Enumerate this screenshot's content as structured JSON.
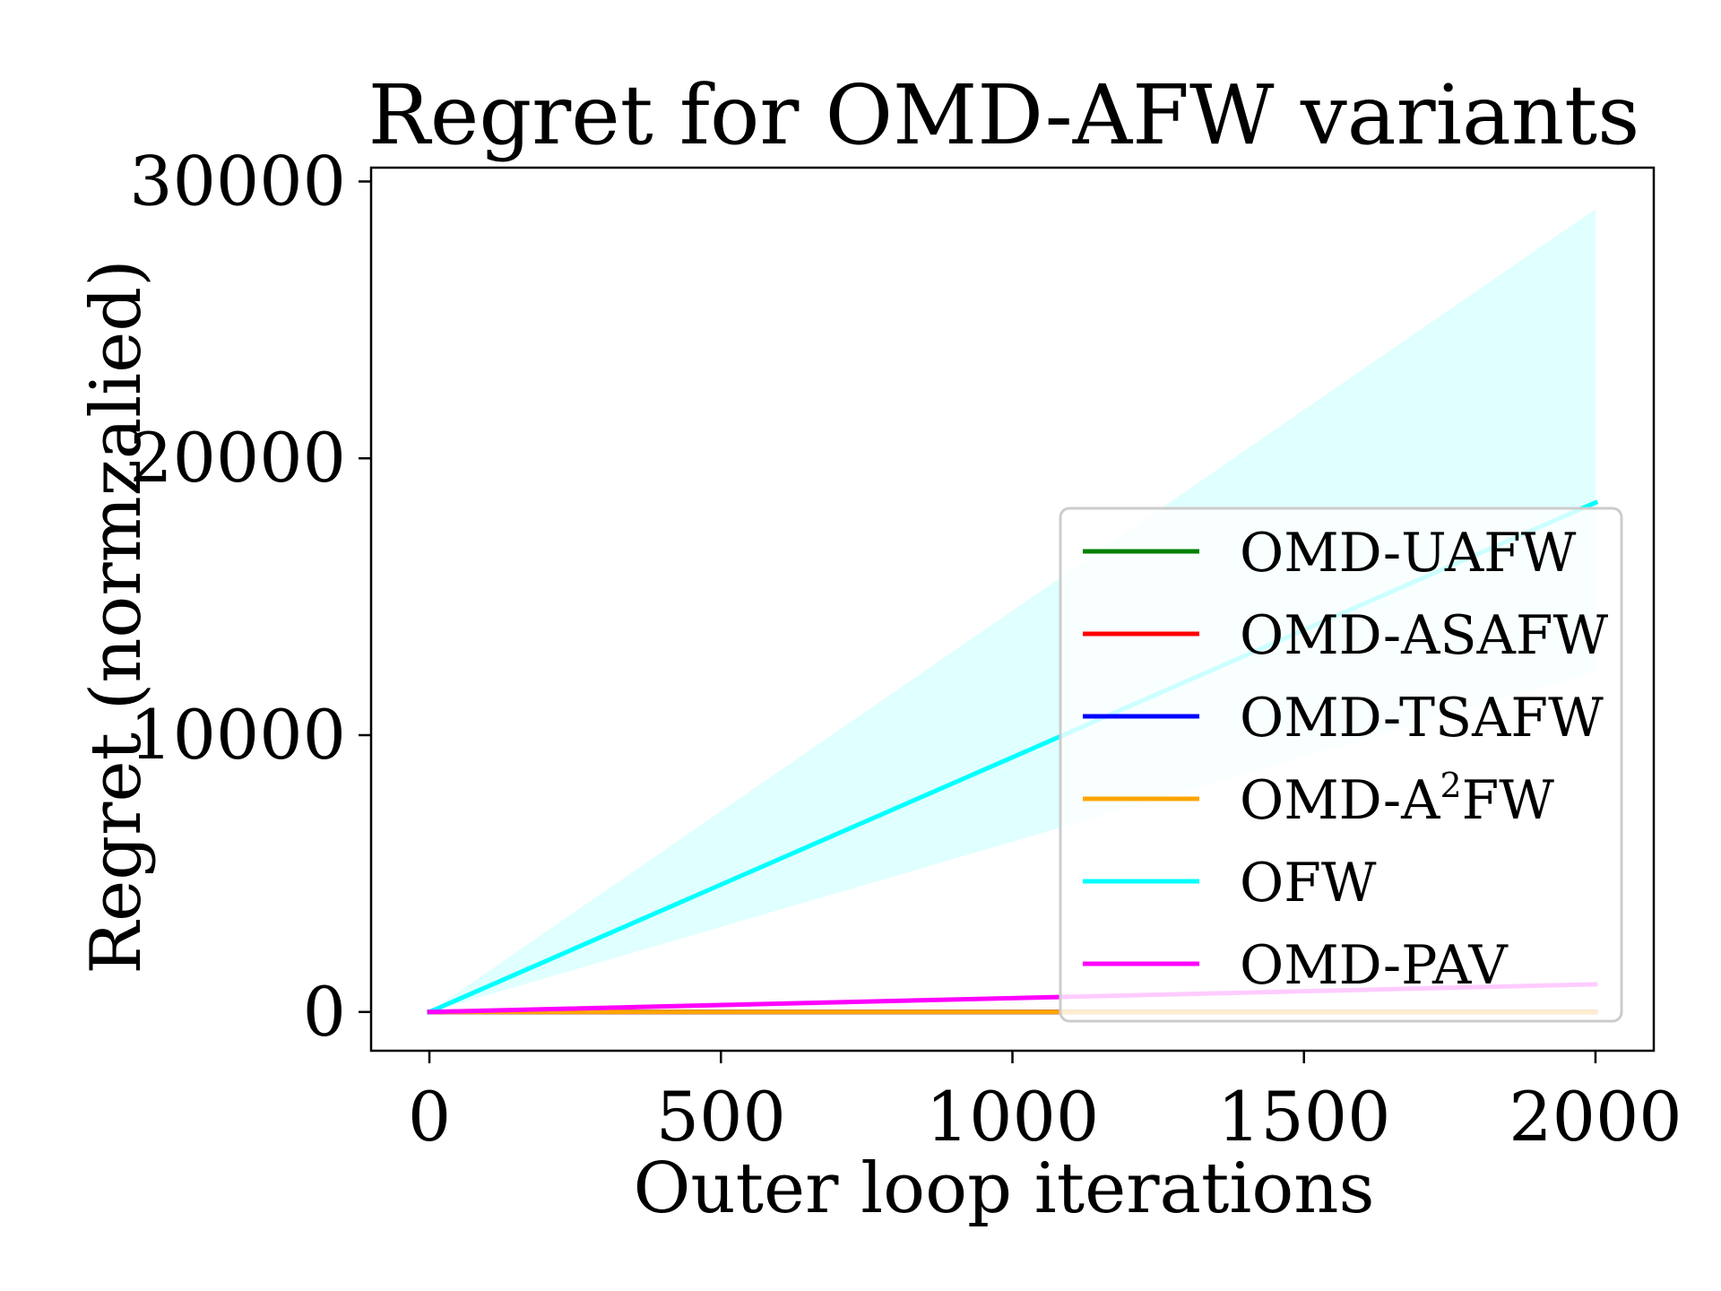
{
  "chart_data": {
    "type": "line",
    "title": "Regret for OMD-AFW variants",
    "xlabel": "Outer loop iterations",
    "ylabel": "Regret (normzalied)",
    "xlim": [
      -100,
      2100
    ],
    "ylim": [
      -1400,
      30500
    ],
    "xticks": [
      0,
      500,
      1000,
      1500,
      2000
    ],
    "yticks": [
      0,
      10000,
      20000,
      30000
    ],
    "x": [
      0,
      2000
    ],
    "legend_position": "lower-right",
    "grid": false,
    "series": [
      {
        "name": "OMD-UAFW",
        "name_base": "OMD-UAFW",
        "name_sup": "",
        "color": "#008000",
        "values": [
          0,
          0
        ]
      },
      {
        "name": "OMD-ASAFW",
        "name_base": "OMD-ASAFW",
        "name_sup": "",
        "color": "#ff0000",
        "values": [
          0,
          0
        ]
      },
      {
        "name": "OMD-TSAFW",
        "name_base": "OMD-TSAFW",
        "name_sup": "",
        "color": "#0000ff",
        "values": [
          0,
          0
        ]
      },
      {
        "name": "OMD-A2FW",
        "name_base": "OMD-A",
        "name_sup": "2",
        "name_tail": "FW",
        "color": "#ffa500",
        "values": [
          0,
          0
        ]
      },
      {
        "name": "OFW",
        "name_base": "OFW",
        "name_sup": "",
        "color": "#00ffff",
        "values": [
          0,
          18400
        ],
        "band_lower": [
          0,
          12300
        ],
        "band_upper": [
          0,
          29000
        ]
      },
      {
        "name": "OMD-PAV",
        "name_base": "OMD-PAV",
        "name_sup": "",
        "color": "#ff00ff",
        "values": [
          0,
          1000
        ]
      }
    ]
  }
}
